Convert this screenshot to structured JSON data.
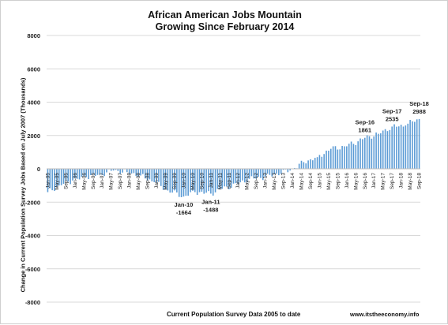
{
  "chart_data": {
    "type": "bar",
    "title": "African American Jobs Mountain",
    "subtitle": "Growing Since February 2014",
    "xlabel": "Current Population Survey Data 2005 to date",
    "ylabel": "Change in Current Population Survey Jobs Based on July 2007  (Thousands)",
    "source": "www.itstheeconomy.info",
    "ylim": [
      -8000,
      8000
    ],
    "yticks": [
      -8000,
      -6000,
      -4000,
      -2000,
      0,
      2000,
      4000,
      6000,
      8000
    ],
    "ytick_labels": [
      "-8000",
      "-6000",
      "-4000",
      "-2000",
      "0",
      "2000",
      "4000",
      "6000",
      "8000"
    ],
    "grid": true,
    "bar_color": "#5b9bd5",
    "x_start": "2005-01",
    "x_end": "2018-09",
    "xtick_labels": [
      "Jan-05",
      "May-05",
      "Sep-05",
      "Jan-06",
      "May-06",
      "Sep-06",
      "Jan-07",
      "May-07",
      "Sep-07",
      "Jan-08",
      "May-08",
      "Sep-08",
      "Jan-09",
      "May-09",
      "Sep-09",
      "Jan-10",
      "May-10",
      "Sep-10",
      "Jan-11",
      "May-11",
      "Sep-11",
      "Jan-12",
      "May-12",
      "Sep-12",
      "Jan-13",
      "May-13",
      "Sep-13",
      "Jan-14",
      "May-14",
      "Sep-14",
      "Jan-15",
      "May-15",
      "Sep-15",
      "Jan-16",
      "May-16",
      "Sep-16",
      "Jan-17",
      "May-17",
      "Sep-17",
      "Jan-18",
      "May-18",
      "Sep-18"
    ],
    "anchors": [
      {
        "x": "2005-01",
        "y": -1400
      },
      {
        "x": "2005-06",
        "y": -1000
      },
      {
        "x": "2005-12",
        "y": -700
      },
      {
        "x": "2006-06",
        "y": -500
      },
      {
        "x": "2006-12",
        "y": -350
      },
      {
        "x": "2007-06",
        "y": -100
      },
      {
        "x": "2007-12",
        "y": -200
      },
      {
        "x": "2008-06",
        "y": -400
      },
      {
        "x": "2008-12",
        "y": -800
      },
      {
        "x": "2009-06",
        "y": -1300
      },
      {
        "x": "2010-01",
        "y": -1664
      },
      {
        "x": "2010-06",
        "y": -1400
      },
      {
        "x": "2011-01",
        "y": -1488
      },
      {
        "x": "2011-06",
        "y": -1200
      },
      {
        "x": "2012-01",
        "y": -900
      },
      {
        "x": "2012-06",
        "y": -600
      },
      {
        "x": "2013-01",
        "y": -500
      },
      {
        "x": "2013-06",
        "y": -300
      },
      {
        "x": "2013-12",
        "y": -100
      },
      {
        "x": "2014-02",
        "y": 50
      },
      {
        "x": "2014-06",
        "y": 400
      },
      {
        "x": "2014-12",
        "y": 700
      },
      {
        "x": "2015-06",
        "y": 1200
      },
      {
        "x": "2015-12",
        "y": 1350
      },
      {
        "x": "2016-06",
        "y": 1650
      },
      {
        "x": "2016-09",
        "y": 1861
      },
      {
        "x": "2017-03",
        "y": 2100
      },
      {
        "x": "2017-09",
        "y": 2535
      },
      {
        "x": "2018-03",
        "y": 2600
      },
      {
        "x": "2018-06",
        "y": 2850
      },
      {
        "x": "2018-09",
        "y": 2988
      }
    ],
    "annotations": [
      {
        "x": "2010-01",
        "y": -1664,
        "label": "Jan-10",
        "value": "-1664"
      },
      {
        "x": "2011-01",
        "y": -1488,
        "label": "Jan-11",
        "value": "-1488"
      },
      {
        "x": "2016-09",
        "y": 1861,
        "label": "Sep-16",
        "value": "1861"
      },
      {
        "x": "2017-09",
        "y": 2535,
        "label": "Sep-17",
        "value": "2535"
      },
      {
        "x": "2018-09",
        "y": 2988,
        "label": "Sep-18",
        "value": "2988"
      }
    ]
  }
}
